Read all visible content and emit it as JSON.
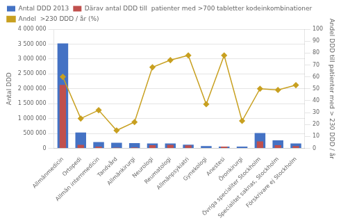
{
  "chart_data": {
    "type": "bar",
    "categories": [
      "Allmänmedicin",
      "Ortopedi",
      "Allmän internmedicin",
      "Tandvård",
      "Allmänkirurgi",
      "Neurologi",
      "Reumatologi",
      "Allmänpsykiatri",
      "Gynekologi",
      "Anestesi",
      "Öronkirurgi",
      "Övriga specialiter Stockholm",
      "Specialitet saknas, Stockholm",
      "Förskrivare ej Stockholm"
    ],
    "series": [
      {
        "name": "Antal DDD 2013",
        "type": "bar",
        "color": "#4472C4",
        "values": [
          3520000,
          530000,
          210000,
          185000,
          175000,
          165000,
          160000,
          120000,
          75000,
          55000,
          60000,
          510000,
          265000,
          160000
        ]
      },
      {
        "name": "Därav antal DDD till  patienter med >700 tabletter kodeinkombinationer",
        "type": "bar",
        "color": "#C0504D",
        "values": [
          2130000,
          115000,
          55000,
          20000,
          30000,
          105000,
          115000,
          100000,
          10000,
          55000,
          10000,
          235000,
          105000,
          75000
        ]
      },
      {
        "name": "Andel  >230 DDD / år (%)",
        "type": "line",
        "color": "#C8A020",
        "marker": "diamond",
        "axis": "y2",
        "values": [
          60,
          25,
          32,
          15,
          22,
          68,
          74,
          78,
          37,
          78,
          23,
          50,
          49,
          53
        ]
      }
    ],
    "ylabel": "Antal DDD",
    "y2label": "Andel DDD till patienter med > 230 DDD / år",
    "ylim": [
      0,
      4000000
    ],
    "yticks": [
      0,
      {
        "value": 500000,
        "label": "500 000"
      },
      {
        "value": 1000000,
        "label": "1 000 000"
      },
      {
        "value": 1500000,
        "label": "1 500 000"
      },
      {
        "value": 2000000,
        "label": "2 000 000"
      },
      {
        "value": 2500000,
        "label": "2 500 000"
      },
      {
        "value": 3000000,
        "label": "3 000 000"
      },
      {
        "value": 3500000,
        "label": "3 500 000"
      },
      {
        "value": 4000000,
        "label": "4 000 000"
      }
    ],
    "y2lim": [
      0,
      100
    ],
    "y2ticks": [
      0,
      10,
      20,
      30,
      40,
      50,
      60,
      70,
      80,
      90,
      100
    ],
    "grid": true,
    "legend": "upper left"
  }
}
